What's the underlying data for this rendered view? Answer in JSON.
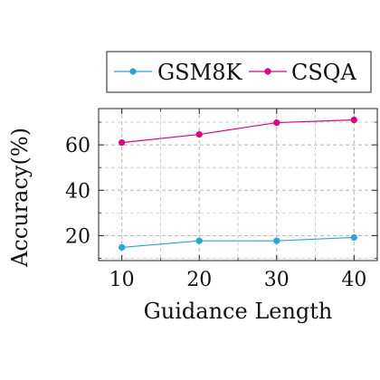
{
  "chart_data": {
    "type": "line",
    "title": "",
    "xlabel": "Guidance Length",
    "ylabel": "Accuracy(%)",
    "x": [
      10,
      20,
      30,
      40
    ],
    "xlim": [
      7,
      43
    ],
    "ylim": [
      9,
      76
    ],
    "xticks": [
      10,
      20,
      30,
      40
    ],
    "yticks": [
      20,
      40,
      60
    ],
    "xtick_labels": [
      "10",
      "20",
      "30",
      "40"
    ],
    "ytick_labels": [
      "20",
      "40",
      "60"
    ],
    "grid": true,
    "legend_position": "top-center",
    "series": [
      {
        "name": "GSM8K",
        "values": [
          14.8,
          17.7,
          17.7,
          19.2
        ],
        "color": "#1fa7e0",
        "marker": "circle"
      },
      {
        "name": "CSQA",
        "values": [
          61.0,
          64.6,
          69.8,
          71.0
        ],
        "color": "#e6007e",
        "marker": "circle"
      }
    ]
  }
}
